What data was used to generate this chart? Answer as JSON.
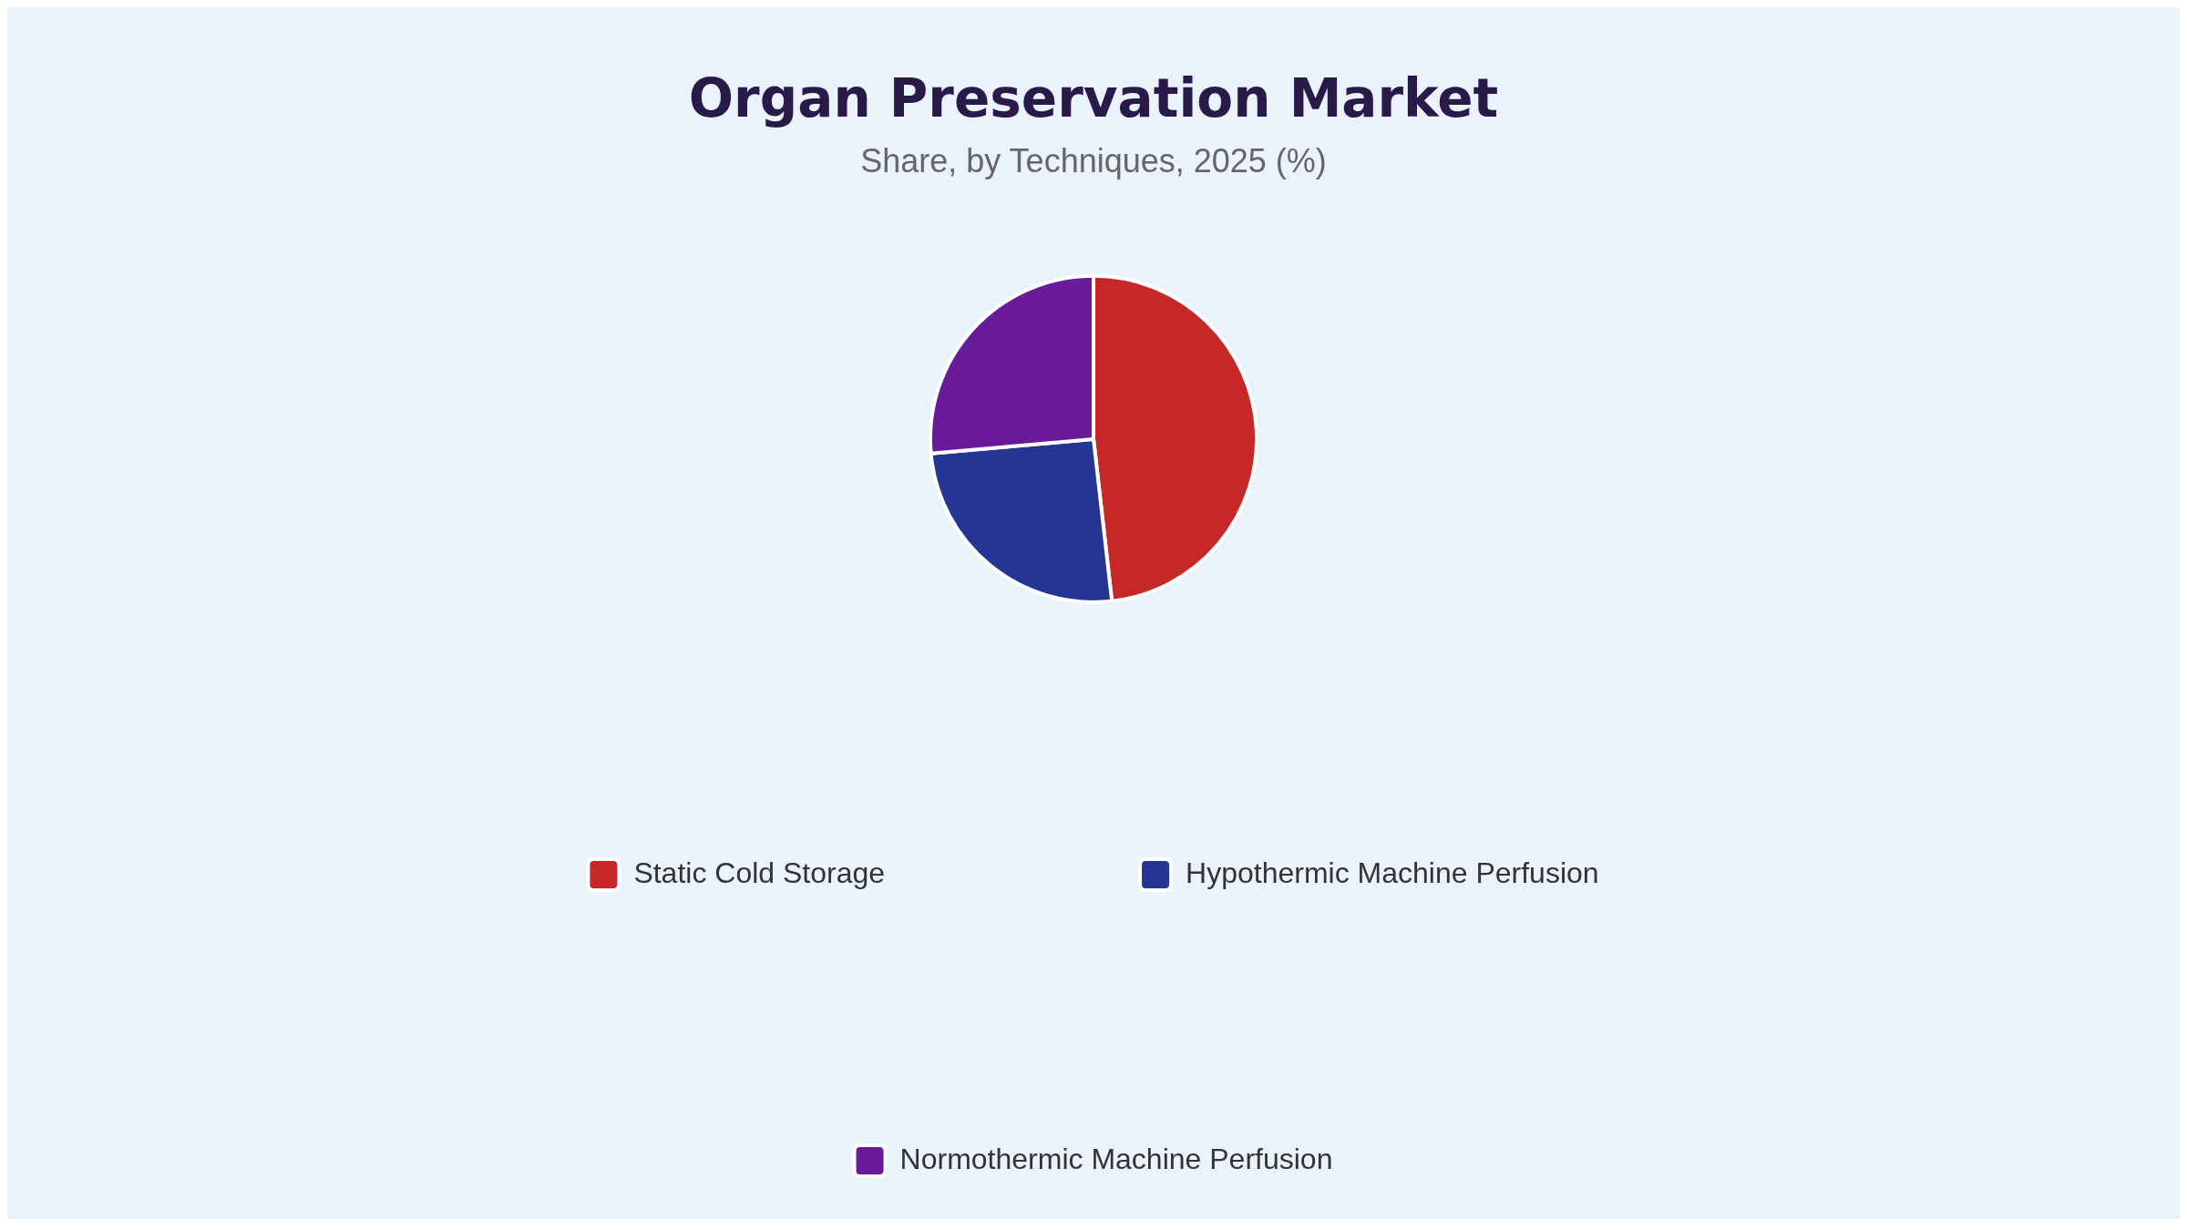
{
  "chart_data": {
    "type": "pie",
    "title": "Organ Preservation Market",
    "subtitle": "Share, by Techniques, 2025 (%)",
    "categories": [
      "Static Cold Storage",
      "Hypothermic Machine Perfusion",
      "Normothermic Machine Perfusion"
    ],
    "values": [
      48.2,
      25.4,
      26.4
    ],
    "colors": [
      "#c62828",
      "#253593",
      "#6a1b9a"
    ],
    "legend": "bottom"
  }
}
